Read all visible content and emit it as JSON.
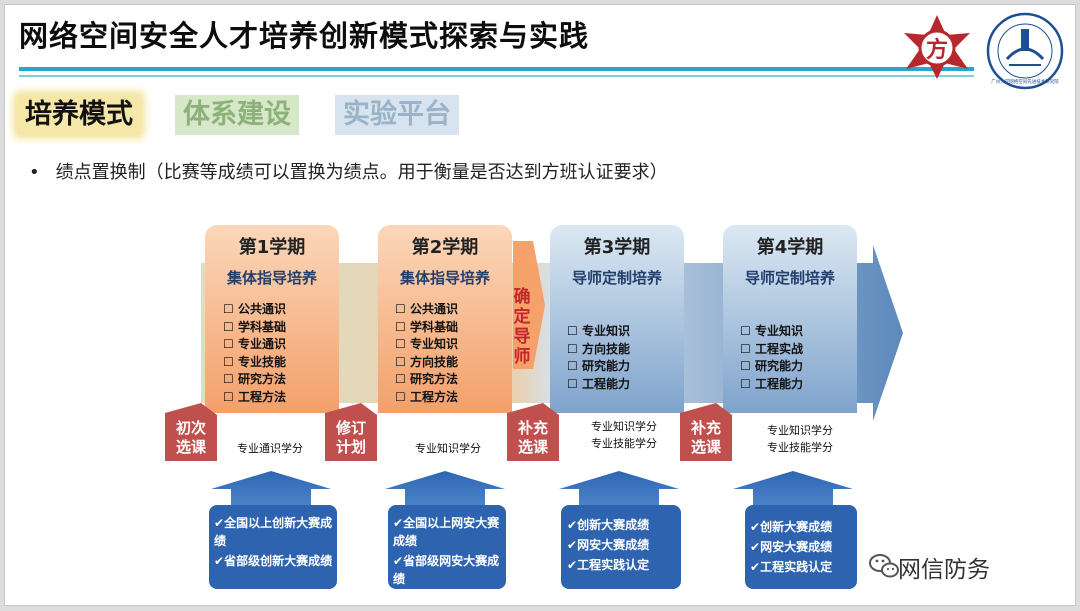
{
  "slide": {
    "title": "网络空间安全人才培养创新模式探索与实践",
    "tabs": [
      {
        "label": "培养模式"
      },
      {
        "label": "体系建设"
      },
      {
        "label": "实验平台"
      }
    ],
    "bullet": "绩点置换制（比赛等成绩可以置换为绩点。用于衡量是否达到方班认证要求）"
  },
  "logos": {
    "left_glyph": "方",
    "right_text": "广州大学网络空间先进技术研究院"
  },
  "semesters": [
    {
      "title": "第1学期",
      "subtitle": "集体指导培养",
      "items": [
        "公共通识",
        "学科基础",
        "专业通识",
        "专业技能",
        "研究方法",
        "工程方法"
      ]
    },
    {
      "title": "第2学期",
      "subtitle": "集体指导培养",
      "items": [
        "公共通识",
        "学科基础",
        "专业知识",
        "方向技能",
        "研究方法",
        "工程方法"
      ]
    },
    {
      "title": "第3学期",
      "subtitle": "导师定制培养",
      "items": [
        "专业知识",
        "方向技能",
        "研究能力",
        "工程能力"
      ]
    },
    {
      "title": "第4学期",
      "subtitle": "导师定制培养",
      "items": [
        "专业知识",
        "工程实战",
        "研究能力",
        "工程能力"
      ]
    }
  ],
  "milestone": "确定导师",
  "tags": [
    "初次选课",
    "修订计划",
    "补充选课",
    "补充选课"
  ],
  "credits": [
    [
      "专业通识学分"
    ],
    [
      "专业知识学分"
    ],
    [
      "专业知识学分",
      "专业技能学分"
    ],
    [
      "专业知识学分",
      "专业技能学分"
    ]
  ],
  "bottom_boxes": [
    [
      "全国以上创新大赛成绩",
      "省部级创新大赛成绩"
    ],
    [
      "全国以上网安大赛成绩",
      "省部级网安大赛成绩"
    ],
    [
      "创新大赛成绩",
      "网安大赛成绩",
      "工程实践认定"
    ],
    [
      "创新大赛成绩",
      "网安大赛成绩",
      "工程实践认定"
    ]
  ],
  "watermark": "网信防务",
  "colors": {
    "accent": "#2aa6c4",
    "orange": "#f5a878",
    "blue": "#5b88c0",
    "tag": "#c0504d",
    "box": "#2e63b0"
  }
}
